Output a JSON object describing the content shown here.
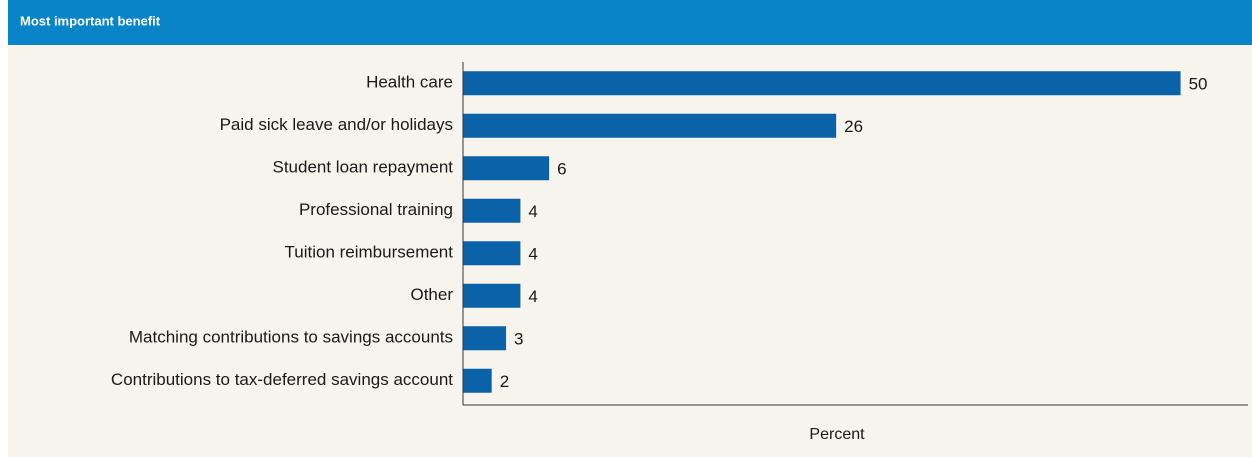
{
  "chart_data": {
    "type": "bar",
    "orientation": "horizontal",
    "title": "Most important benefit",
    "categories": [
      "Health care",
      "Paid sick leave and/or holidays",
      "Student loan repayment",
      "Professional training",
      "Tuition reimbursement",
      "Other",
      "Matching contributions to savings accounts",
      "Contributions to tax-deferred savings account"
    ],
    "values": [
      50,
      26,
      6,
      4,
      4,
      4,
      3,
      2
    ],
    "color": "#0a62a8",
    "xlabel": "Percent",
    "xlim": [
      0,
      54
    ]
  }
}
